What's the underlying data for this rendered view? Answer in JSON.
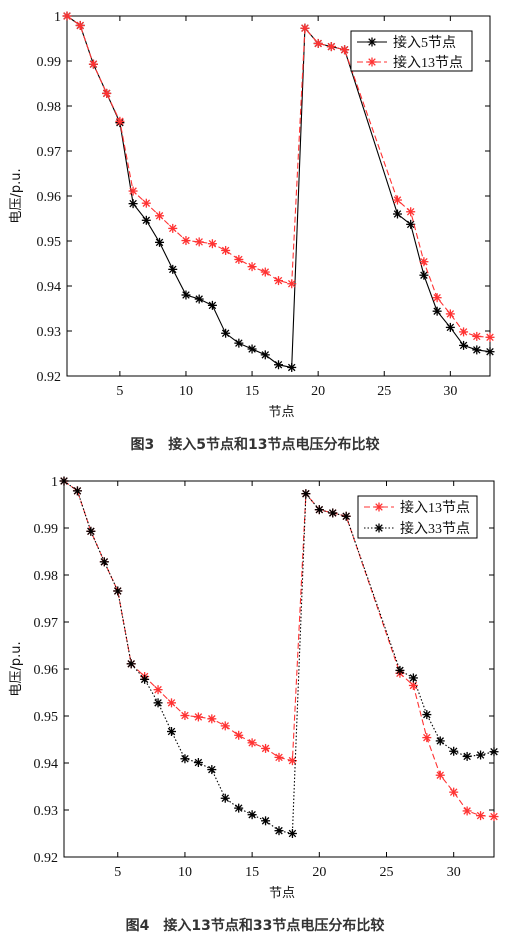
{
  "chart_data": [
    {
      "type": "line",
      "caption": "图3　接入5节点和13节点电压分布比较",
      "xlabel": "节点",
      "ylabel": "电压/p.u.",
      "xlim": [
        1,
        33
      ],
      "ylim": [
        0.92,
        1.0
      ],
      "xticks": [
        5,
        10,
        15,
        20,
        25,
        30
      ],
      "yticks": [
        0.92,
        0.93,
        0.94,
        0.95,
        0.96,
        0.97,
        0.98,
        0.99,
        1
      ],
      "ytick_labels": [
        "0.92",
        "0.93",
        "0.94",
        "0.95",
        "0.96",
        "0.97",
        "0.98",
        "0.99",
        "1"
      ],
      "legend_position": "top-right",
      "x": [
        1,
        2,
        3,
        4,
        5,
        6,
        7,
        8,
        9,
        10,
        11,
        12,
        13,
        14,
        15,
        16,
        17,
        18,
        19,
        20,
        21,
        22,
        26,
        27,
        28,
        29,
        30,
        31,
        32,
        33
      ],
      "series": [
        {
          "name": "接入5节点",
          "color": "#000000",
          "dash": "solid",
          "values": [
            1.0,
            0.9979,
            0.9893,
            0.9828,
            0.9763,
            0.9583,
            0.9546,
            0.9497,
            0.9437,
            0.938,
            0.9371,
            0.9357,
            0.9295,
            0.9273,
            0.926,
            0.9247,
            0.9225,
            0.9219,
            0.9973,
            0.9939,
            0.9932,
            0.9925,
            0.956,
            0.9537,
            0.9424,
            0.9344,
            0.9308,
            0.9268,
            0.9258,
            0.9254
          ]
        },
        {
          "name": "接入13节点",
          "color": "#ff3333",
          "dash": "dashed",
          "values": [
            1.0,
            0.9979,
            0.9893,
            0.9828,
            0.9766,
            0.9611,
            0.9584,
            0.9556,
            0.9528,
            0.9501,
            0.9498,
            0.9494,
            0.9479,
            0.9459,
            0.9443,
            0.9431,
            0.9412,
            0.9405,
            0.9973,
            0.9939,
            0.9932,
            0.9925,
            0.9591,
            0.9565,
            0.9454,
            0.9374,
            0.9338,
            0.9298,
            0.9288,
            0.9286
          ]
        }
      ]
    },
    {
      "type": "line",
      "caption": "图4　接入13节点和33节点电压分布比较",
      "xlabel": "节点",
      "ylabel": "电压/p.u.",
      "xlim": [
        1,
        33
      ],
      "ylim": [
        0.92,
        1.0
      ],
      "xticks": [
        5,
        10,
        15,
        20,
        25,
        30
      ],
      "yticks": [
        0.92,
        0.93,
        0.94,
        0.95,
        0.96,
        0.97,
        0.98,
        0.99,
        1
      ],
      "ytick_labels": [
        "0.92",
        "0.93",
        "0.94",
        "0.95",
        "0.96",
        "0.97",
        "0.98",
        "0.99",
        "1"
      ],
      "legend_position": "top-right",
      "x": [
        1,
        2,
        3,
        4,
        5,
        6,
        7,
        8,
        9,
        10,
        11,
        12,
        13,
        14,
        15,
        16,
        17,
        18,
        19,
        20,
        21,
        22,
        26,
        27,
        28,
        29,
        30,
        31,
        32,
        33
      ],
      "series": [
        {
          "name": "接入13节点",
          "color": "#ff3333",
          "dash": "dashed",
          "values": [
            1.0,
            0.9979,
            0.9893,
            0.9828,
            0.9766,
            0.9611,
            0.9584,
            0.9556,
            0.9528,
            0.9501,
            0.9498,
            0.9494,
            0.9479,
            0.9459,
            0.9443,
            0.9431,
            0.9412,
            0.9405,
            0.9973,
            0.9939,
            0.9932,
            0.9925,
            0.9591,
            0.9565,
            0.9454,
            0.9374,
            0.9338,
            0.9298,
            0.9288,
            0.9286
          ]
        },
        {
          "name": "接入33节点",
          "color": "#000000",
          "dash": "dotted",
          "values": [
            1.0,
            0.9979,
            0.9893,
            0.9828,
            0.9766,
            0.9611,
            0.9578,
            0.9528,
            0.9467,
            0.9409,
            0.9401,
            0.9386,
            0.9325,
            0.9304,
            0.929,
            0.9277,
            0.9256,
            0.925,
            0.9973,
            0.9939,
            0.9932,
            0.9925,
            0.9597,
            0.9581,
            0.9503,
            0.9447,
            0.9425,
            0.9414,
            0.9417,
            0.9424
          ]
        }
      ]
    }
  ]
}
